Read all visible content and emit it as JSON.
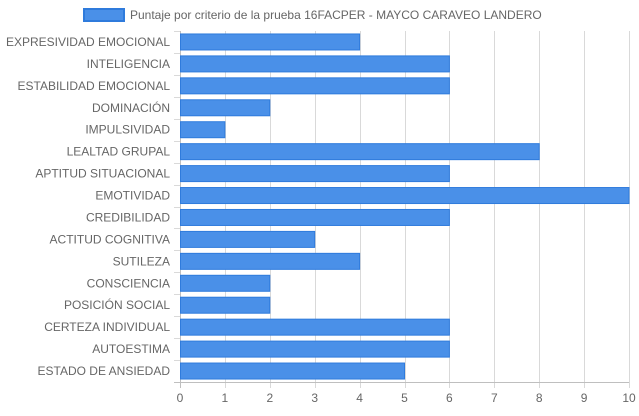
{
  "chart_data": {
    "type": "bar",
    "orientation": "horizontal",
    "title": "",
    "xlabel": "",
    "ylabel": "",
    "xlim": [
      0,
      10
    ],
    "x_ticks": [
      "0",
      "1",
      "2",
      "3",
      "4",
      "5",
      "6",
      "7",
      "8",
      "9",
      "10"
    ],
    "grid": true,
    "legend_position": "top-center",
    "categories": [
      "EXPRESIVIDAD EMOCIONAL",
      "INTELIGENCIA",
      "ESTABILIDAD EMOCIONAL",
      "DOMINACIÓN",
      "IMPULSIVIDAD",
      "LEALTAD GRUPAL",
      "APTITUD SITUACIONAL",
      "EMOTIVIDAD",
      "CREDIBILIDAD",
      "ACTITUD COGNITIVA",
      "SUTILEZA",
      "CONSCIENCIA",
      "POSICIÓN SOCIAL",
      "CERTEZA INDIVIDUAL",
      "AUTOESTIMA",
      "ESTADO DE ANSIEDAD"
    ],
    "series": [
      {
        "name": "Puntaje por criterio de la prueba 16FACPER - MAYCO CARAVEO LANDERO",
        "values": [
          4,
          6,
          6,
          2,
          1,
          8,
          6,
          10,
          6,
          3,
          4,
          2,
          2,
          6,
          6,
          5
        ],
        "color": "#4a90e8",
        "border_color": "#2f7bdc"
      }
    ]
  }
}
